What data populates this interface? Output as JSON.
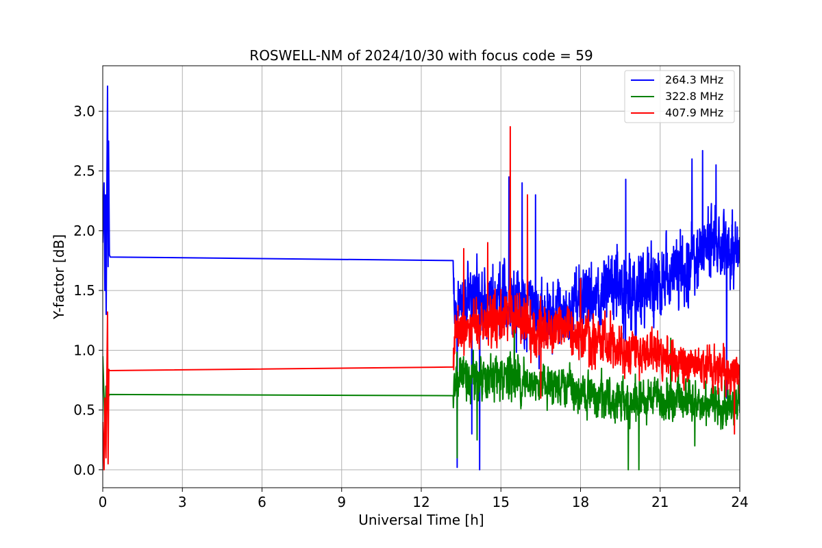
{
  "chart_data": {
    "type": "line",
    "title": "ROSWELL-NM of 2024/10/30 with focus code = 59",
    "xlabel": "Universal Time [h]",
    "ylabel": "Y-factor [dB]",
    "xlim": [
      0,
      24
    ],
    "ylim": [
      -0.15,
      3.38
    ],
    "xticks": [
      0,
      3,
      6,
      9,
      12,
      15,
      18,
      21,
      24
    ],
    "yticks": [
      0.0,
      0.5,
      1.0,
      1.5,
      2.0,
      2.5,
      3.0
    ],
    "xtick_labels": [
      "0",
      "3",
      "6",
      "9",
      "12",
      "15",
      "18",
      "21",
      "24"
    ],
    "ytick_labels": [
      "0.0",
      "0.5",
      "1.0",
      "1.5",
      "2.0",
      "2.5",
      "3.0"
    ],
    "grid": true,
    "legend_position": "top-right",
    "series": [
      {
        "name": "264.3 MHz",
        "color": "#0000ff",
        "anchors": [
          [
            0.0,
            1.9
          ],
          [
            0.05,
            2.4
          ],
          [
            0.08,
            1.5
          ],
          [
            0.1,
            2.3
          ],
          [
            0.13,
            1.3
          ],
          [
            0.15,
            2.2
          ],
          [
            0.18,
            3.21
          ],
          [
            0.2,
            1.7
          ],
          [
            0.22,
            2.75
          ],
          [
            0.25,
            1.8
          ],
          [
            0.28,
            1.78
          ],
          [
            13.2,
            1.75
          ],
          [
            13.3,
            1.2
          ],
          [
            13.45,
            1.4
          ],
          [
            14.0,
            1.45
          ],
          [
            15.0,
            1.45
          ],
          [
            16.0,
            1.4
          ],
          [
            17.0,
            1.3
          ],
          [
            17.5,
            1.35
          ],
          [
            18.0,
            1.4
          ],
          [
            19.0,
            1.5
          ],
          [
            20.0,
            1.45
          ],
          [
            21.0,
            1.55
          ],
          [
            22.0,
            1.75
          ],
          [
            23.0,
            1.9
          ],
          [
            24.0,
            1.8
          ]
        ],
        "noise_amp": [
          [
            13.2,
            0.3
          ],
          [
            14.0,
            0.35
          ],
          [
            15.0,
            0.45
          ],
          [
            16.0,
            0.5
          ],
          [
            17.0,
            0.4
          ],
          [
            18.0,
            0.4
          ],
          [
            19.0,
            0.45
          ],
          [
            20.0,
            0.5
          ],
          [
            21.0,
            0.45
          ],
          [
            22.0,
            0.45
          ],
          [
            24.0,
            0.4
          ]
        ],
        "spikes": [
          [
            13.35,
            0.02
          ],
          [
            13.9,
            0.3
          ],
          [
            14.2,
            0.0
          ],
          [
            15.3,
            2.45
          ],
          [
            15.8,
            2.4
          ],
          [
            16.3,
            2.3
          ],
          [
            19.7,
            2.43
          ],
          [
            22.2,
            2.6
          ],
          [
            22.6,
            2.67
          ],
          [
            23.1,
            2.55
          ],
          [
            23.5,
            0.6
          ]
        ]
      },
      {
        "name": "322.8 MHz",
        "color": "#008000",
        "anchors": [
          [
            0.0,
            0.95
          ],
          [
            0.05,
            0.6
          ],
          [
            0.08,
            0.3
          ],
          [
            0.12,
            0.7
          ],
          [
            0.15,
            0.5
          ],
          [
            0.18,
            0.62
          ],
          [
            0.2,
            0.6
          ],
          [
            0.25,
            0.63
          ],
          [
            13.2,
            0.62
          ],
          [
            13.3,
            0.75
          ],
          [
            14.0,
            0.75
          ],
          [
            15.0,
            0.8
          ],
          [
            16.0,
            0.72
          ],
          [
            17.0,
            0.7
          ],
          [
            18.0,
            0.65
          ],
          [
            19.0,
            0.6
          ],
          [
            20.0,
            0.55
          ],
          [
            21.0,
            0.6
          ],
          [
            22.0,
            0.6
          ],
          [
            23.0,
            0.55
          ],
          [
            24.0,
            0.55
          ]
        ],
        "noise_amp": [
          [
            13.2,
            0.25
          ],
          [
            15.0,
            0.3
          ],
          [
            17.0,
            0.25
          ],
          [
            19.0,
            0.28
          ],
          [
            21.0,
            0.25
          ],
          [
            24.0,
            0.25
          ]
        ],
        "spikes": [
          [
            13.35,
            0.1
          ],
          [
            14.1,
            0.25
          ],
          [
            15.5,
            1.2
          ],
          [
            19.8,
            0.0
          ],
          [
            20.2,
            0.0
          ],
          [
            21.4,
            1.1
          ],
          [
            22.3,
            0.2
          ]
        ]
      },
      {
        "name": "407.9 MHz",
        "color": "#ff0000",
        "anchors": [
          [
            0.0,
            0.4
          ],
          [
            0.05,
            0.0
          ],
          [
            0.08,
            0.6
          ],
          [
            0.12,
            0.1
          ],
          [
            0.15,
            0.7
          ],
          [
            0.18,
            1.32
          ],
          [
            0.2,
            0.05
          ],
          [
            0.23,
            0.84
          ],
          [
            0.25,
            0.83
          ],
          [
            13.2,
            0.86
          ],
          [
            13.3,
            1.15
          ],
          [
            14.0,
            1.2
          ],
          [
            15.0,
            1.25
          ],
          [
            15.5,
            1.3
          ],
          [
            16.0,
            1.2
          ],
          [
            17.0,
            1.15
          ],
          [
            18.0,
            1.15
          ],
          [
            19.0,
            1.05
          ],
          [
            20.0,
            1.0
          ],
          [
            21.0,
            0.95
          ],
          [
            22.0,
            0.9
          ],
          [
            23.0,
            0.85
          ],
          [
            24.0,
            0.8
          ]
        ],
        "noise_amp": [
          [
            13.2,
            0.25
          ],
          [
            15.0,
            0.3
          ],
          [
            16.0,
            0.35
          ],
          [
            18.0,
            0.3
          ],
          [
            20.0,
            0.28
          ],
          [
            22.0,
            0.25
          ],
          [
            24.0,
            0.25
          ]
        ],
        "spikes": [
          [
            13.6,
            1.85
          ],
          [
            14.5,
            1.9
          ],
          [
            15.35,
            2.87
          ],
          [
            16.0,
            2.3
          ],
          [
            16.5,
            0.6
          ],
          [
            18.0,
            1.6
          ],
          [
            23.8,
            0.3
          ]
        ]
      }
    ]
  }
}
